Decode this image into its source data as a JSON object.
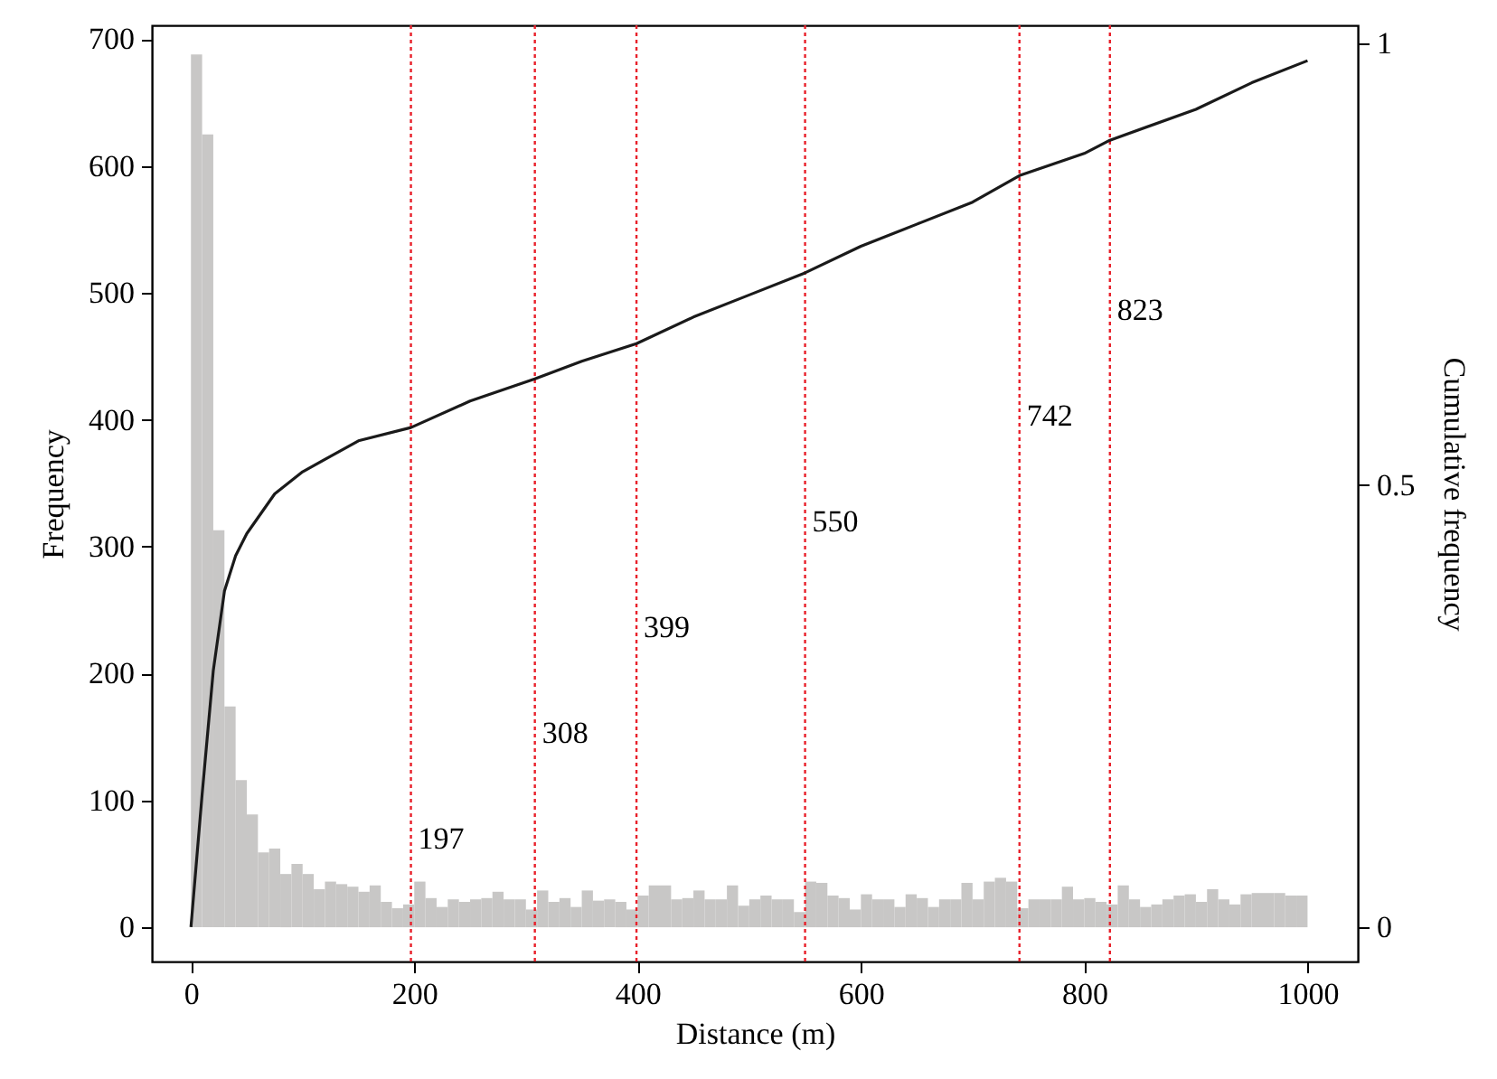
{
  "chart_data": {
    "type": "histogram",
    "xlabel": "Distance (m)",
    "ylabel": "Frequency",
    "y2label": "Cumulative frequency",
    "xlim": [
      -35,
      1045
    ],
    "xticks": [
      0,
      200,
      400,
      600,
      800,
      1000
    ],
    "ylim": [
      -27,
      711
    ],
    "yticks": [
      0,
      100,
      200,
      300,
      400,
      500,
      600,
      700
    ],
    "y2lim": [
      -0.039,
      1.02
    ],
    "y2ticks": [
      0,
      0.5,
      1
    ],
    "grid": false,
    "series": [
      {
        "type": "histogram",
        "color": "#c8c7c6",
        "bins": [
          0,
          10,
          20,
          30,
          40,
          50,
          60,
          70,
          80,
          90,
          100,
          110,
          120,
          130,
          140,
          150,
          160,
          170,
          180,
          190,
          200,
          210,
          220,
          230,
          240,
          250,
          260,
          270,
          280,
          290,
          300,
          310,
          320,
          330,
          340,
          350,
          360,
          370,
          380,
          390,
          400,
          410,
          420,
          430,
          440,
          450,
          460,
          470,
          480,
          490,
          500,
          510,
          520,
          530,
          540,
          550,
          560,
          570,
          580,
          590,
          600,
          610,
          620,
          630,
          640,
          650,
          660,
          670,
          680,
          690,
          700,
          710,
          720,
          730,
          740,
          750,
          760,
          770,
          780,
          790,
          800,
          810,
          820,
          830,
          840,
          850,
          860,
          870,
          880,
          890,
          900,
          910,
          920,
          930,
          940,
          950,
          960,
          970,
          980,
          990,
          1000
        ],
        "values": [
          688,
          625,
          313,
          174,
          116,
          89,
          59,
          62,
          42,
          50,
          42,
          30,
          36,
          34,
          32,
          28,
          33,
          20,
          15,
          18,
          36,
          23,
          16,
          22,
          20,
          22,
          23,
          28,
          22,
          22,
          14,
          29,
          20,
          23,
          16,
          29,
          21,
          22,
          20,
          14,
          25,
          33,
          33,
          22,
          23,
          29,
          22,
          22,
          33,
          17,
          22,
          25,
          22,
          22,
          12,
          36,
          35,
          25,
          23,
          14,
          26,
          22,
          22,
          16,
          26,
          23,
          16,
          22,
          22,
          35,
          22,
          36,
          39,
          36,
          15,
          22,
          22,
          22,
          32,
          22,
          23,
          20,
          18,
          33,
          22,
          16,
          18,
          22,
          25,
          26,
          20,
          30,
          22,
          18,
          26,
          27,
          27,
          27,
          25,
          25
        ]
      },
      {
        "type": "line",
        "axis": "y2",
        "color": "#1a1a1a",
        "x": [
          0,
          10,
          20,
          30,
          40,
          50,
          75,
          100,
          150,
          197,
          250,
          308,
          350,
          399,
          450,
          500,
          550,
          600,
          650,
          700,
          742,
          800,
          823,
          900,
          950,
          1000
        ],
        "values": [
          0,
          0.15,
          0.29,
          0.38,
          0.42,
          0.445,
          0.49,
          0.515,
          0.55,
          0.565,
          0.595,
          0.62,
          0.64,
          0.66,
          0.69,
          0.715,
          0.74,
          0.77,
          0.795,
          0.82,
          0.85,
          0.875,
          0.89,
          0.925,
          0.955,
          0.98
        ]
      }
    ],
    "ref_lines": [
      {
        "axis": "x",
        "value": 197,
        "label": "197",
        "color": "#e8202a",
        "line_style": "dotted"
      },
      {
        "axis": "x",
        "value": 308,
        "label": "308",
        "color": "#e8202a",
        "line_style": "dotted"
      },
      {
        "axis": "x",
        "value": 399,
        "label": "399",
        "color": "#e8202a",
        "line_style": "dotted"
      },
      {
        "axis": "x",
        "value": 550,
        "label": "550",
        "color": "#e8202a",
        "line_style": "dotted"
      },
      {
        "axis": "x",
        "value": 742,
        "label": "742",
        "color": "#e8202a",
        "line_style": "dotted"
      },
      {
        "axis": "x",
        "value": 823,
        "label": "823",
        "color": "#e8202a",
        "line_style": "dotted"
      }
    ]
  }
}
